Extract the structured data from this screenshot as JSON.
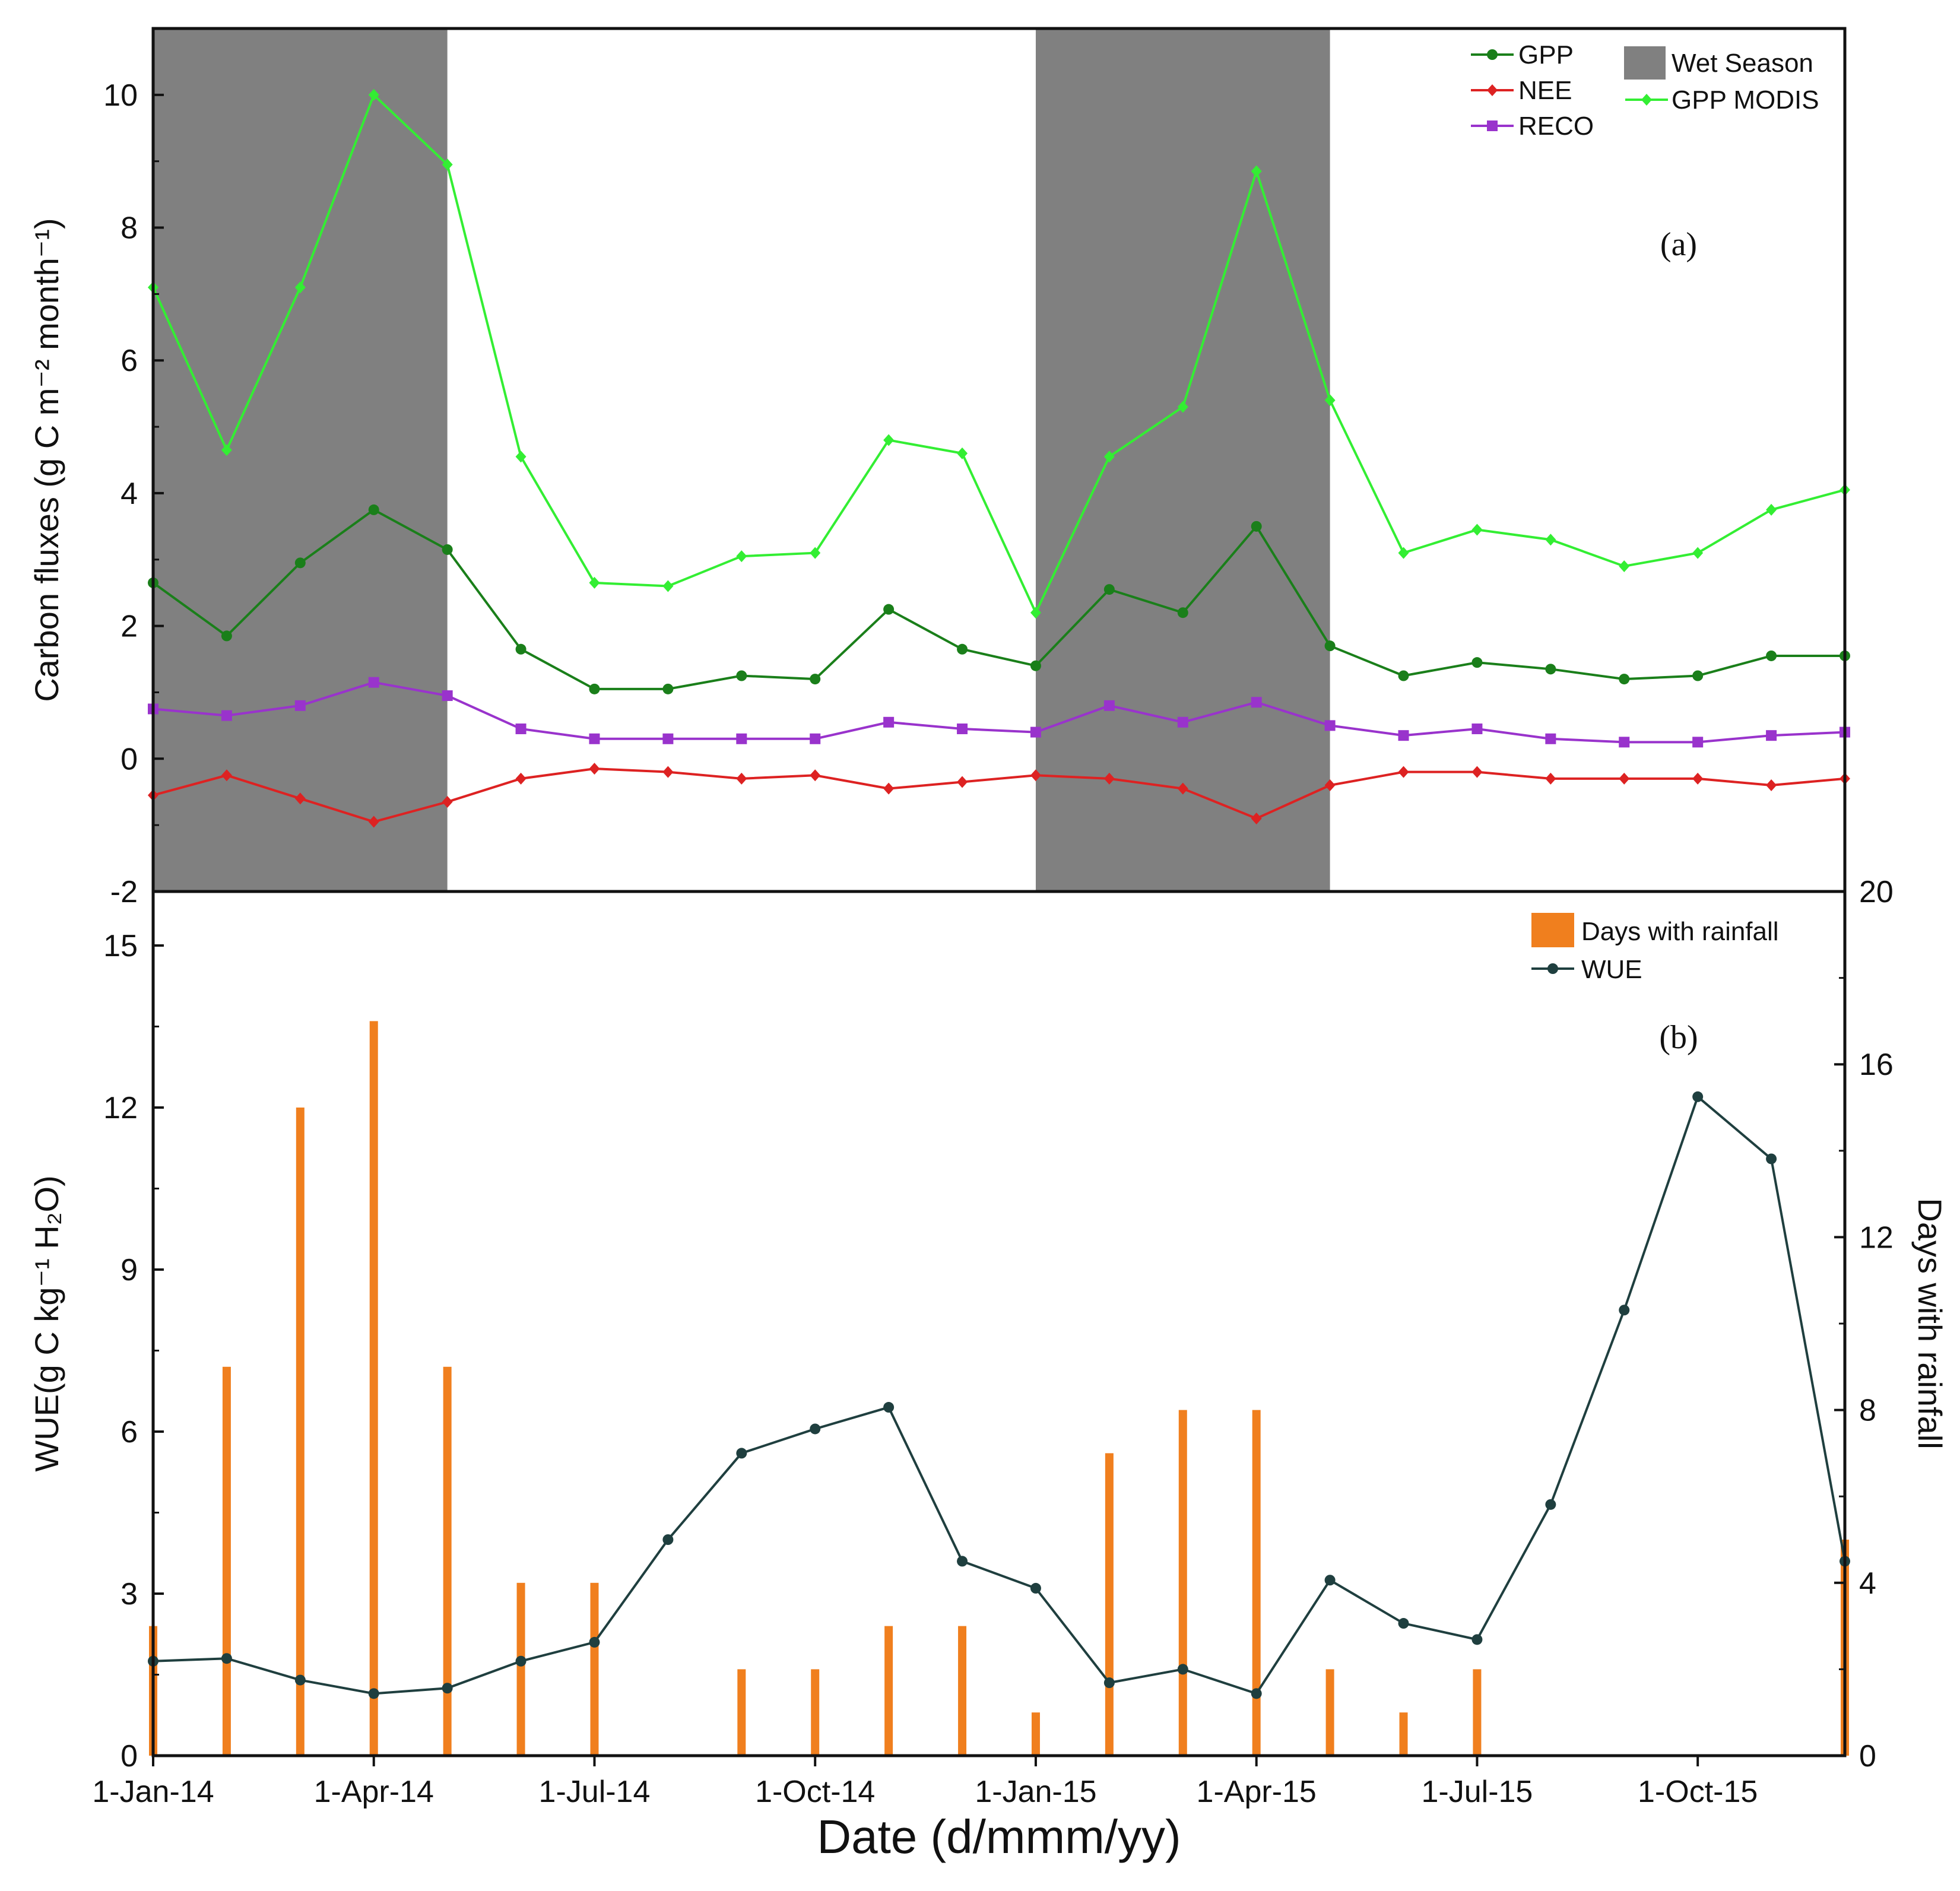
{
  "chart_data": [
    {
      "type": "line",
      "panel_label": "(a)",
      "ylabel": "Carbon fluxes (g C m⁻² month⁻¹)",
      "ylim": [
        -2,
        11
      ],
      "yticks": [
        -2,
        0,
        2,
        4,
        6,
        8,
        10
      ],
      "x": [
        "2014-01",
        "2014-02",
        "2014-03",
        "2014-04",
        "2014-05",
        "2014-06",
        "2014-07",
        "2014-08",
        "2014-09",
        "2014-10",
        "2014-11",
        "2014-12",
        "2015-01",
        "2015-02",
        "2015-03",
        "2015-04",
        "2015-05",
        "2015-06",
        "2015-07",
        "2015-08",
        "2015-09",
        "2015-10",
        "2015-11",
        "2015-12"
      ],
      "shaded_regions": [
        {
          "name": "Wet Season",
          "from": "2014-01",
          "to": "2014-05"
        },
        {
          "name": "Wet Season",
          "from": "2015-01",
          "to": "2015-05"
        }
      ],
      "series": [
        {
          "name": "GPP MODIS",
          "color": "#33ee33",
          "marker": "diamond",
          "values": [
            7.1,
            4.65,
            7.1,
            10.0,
            8.95,
            4.55,
            2.65,
            2.6,
            3.05,
            3.1,
            4.8,
            4.6,
            2.2,
            4.55,
            5.3,
            8.85,
            5.4,
            3.1,
            3.45,
            3.3,
            2.9,
            3.1,
            3.75,
            4.05
          ]
        },
        {
          "name": "GPP",
          "color": "#1a7f1a",
          "marker": "circle",
          "values": [
            2.65,
            1.85,
            2.95,
            3.75,
            3.15,
            1.65,
            1.05,
            1.05,
            1.25,
            1.2,
            2.25,
            1.65,
            1.4,
            2.55,
            2.2,
            3.5,
            1.7,
            1.25,
            1.45,
            1.35,
            1.2,
            1.25,
            1.55,
            1.55
          ]
        },
        {
          "name": "RECO",
          "color": "#9933cc",
          "marker": "square",
          "values": [
            0.75,
            0.65,
            0.8,
            1.15,
            0.95,
            0.45,
            0.3,
            0.3,
            0.3,
            0.3,
            0.55,
            0.45,
            0.4,
            0.8,
            0.55,
            0.85,
            0.5,
            0.35,
            0.45,
            0.3,
            0.25,
            0.25,
            0.35,
            0.4
          ]
        },
        {
          "name": "NEE",
          "color": "#dd2222",
          "marker": "diamond",
          "values": [
            -0.55,
            -0.25,
            -0.6,
            -0.95,
            -0.65,
            -0.3,
            -0.15,
            -0.2,
            -0.3,
            -0.25,
            -0.45,
            -0.35,
            -0.25,
            -0.3,
            -0.45,
            -0.9,
            -0.4,
            -0.2,
            -0.2,
            -0.3,
            -0.3,
            -0.3,
            -0.4,
            -0.3
          ]
        }
      ],
      "legend": {
        "col1": [
          "GPP",
          "NEE",
          "RECO"
        ],
        "col2": [
          "Wet Season",
          "GPP MODIS"
        ]
      }
    },
    {
      "type": "bar+line",
      "panel_label": "(b)",
      "ylabel_left": "WUE(g C kg⁻¹ H₂O)",
      "ylabel_right": "Days with rainfall",
      "xlabel": "Date (d/mmm/yy)",
      "ylim_left": [
        0,
        16
      ],
      "yticks_left": [
        0,
        3,
        6,
        9,
        12,
        15
      ],
      "ylim_right": [
        0,
        20
      ],
      "yticks_right": [
        0,
        4,
        8,
        12,
        16,
        20
      ],
      "x": [
        "2014-01",
        "2014-02",
        "2014-03",
        "2014-04",
        "2014-05",
        "2014-06",
        "2014-07",
        "2014-08",
        "2014-09",
        "2014-10",
        "2014-11",
        "2014-12",
        "2015-01",
        "2015-02",
        "2015-03",
        "2015-04",
        "2015-05",
        "2015-06",
        "2015-07",
        "2015-08",
        "2015-09",
        "2015-10",
        "2015-11",
        "2015-12"
      ],
      "xticks": [
        "1-Jan-14",
        "1-Apr-14",
        "1-Jul-14",
        "1-Oct-14",
        "1-Jan-15",
        "1-Apr-15",
        "1-Jul-15",
        "1-Oct-15"
      ],
      "series": [
        {
          "name": "Days with rainfall",
          "type": "bar",
          "axis": "right",
          "color": "#f07f1e",
          "values": [
            3,
            9,
            15,
            17,
            9,
            4,
            4,
            0,
            2,
            2,
            3,
            3,
            1,
            7,
            8,
            8,
            2,
            1,
            2,
            0,
            0,
            0,
            0,
            5
          ]
        },
        {
          "name": "WUE",
          "type": "line",
          "axis": "left",
          "color": "#1f3f3f",
          "values": [
            1.75,
            1.8,
            1.4,
            1.15,
            1.25,
            1.75,
            2.1,
            4.0,
            5.6,
            6.05,
            6.45,
            3.6,
            3.1,
            1.35,
            1.6,
            1.15,
            3.25,
            2.45,
            2.15,
            4.65,
            8.25,
            12.2,
            11.05,
            3.6
          ]
        }
      ],
      "legend": [
        "Days with rainfall",
        "WUE"
      ]
    }
  ],
  "colors": {
    "wet_season": "#808080",
    "axis": "#111111"
  }
}
